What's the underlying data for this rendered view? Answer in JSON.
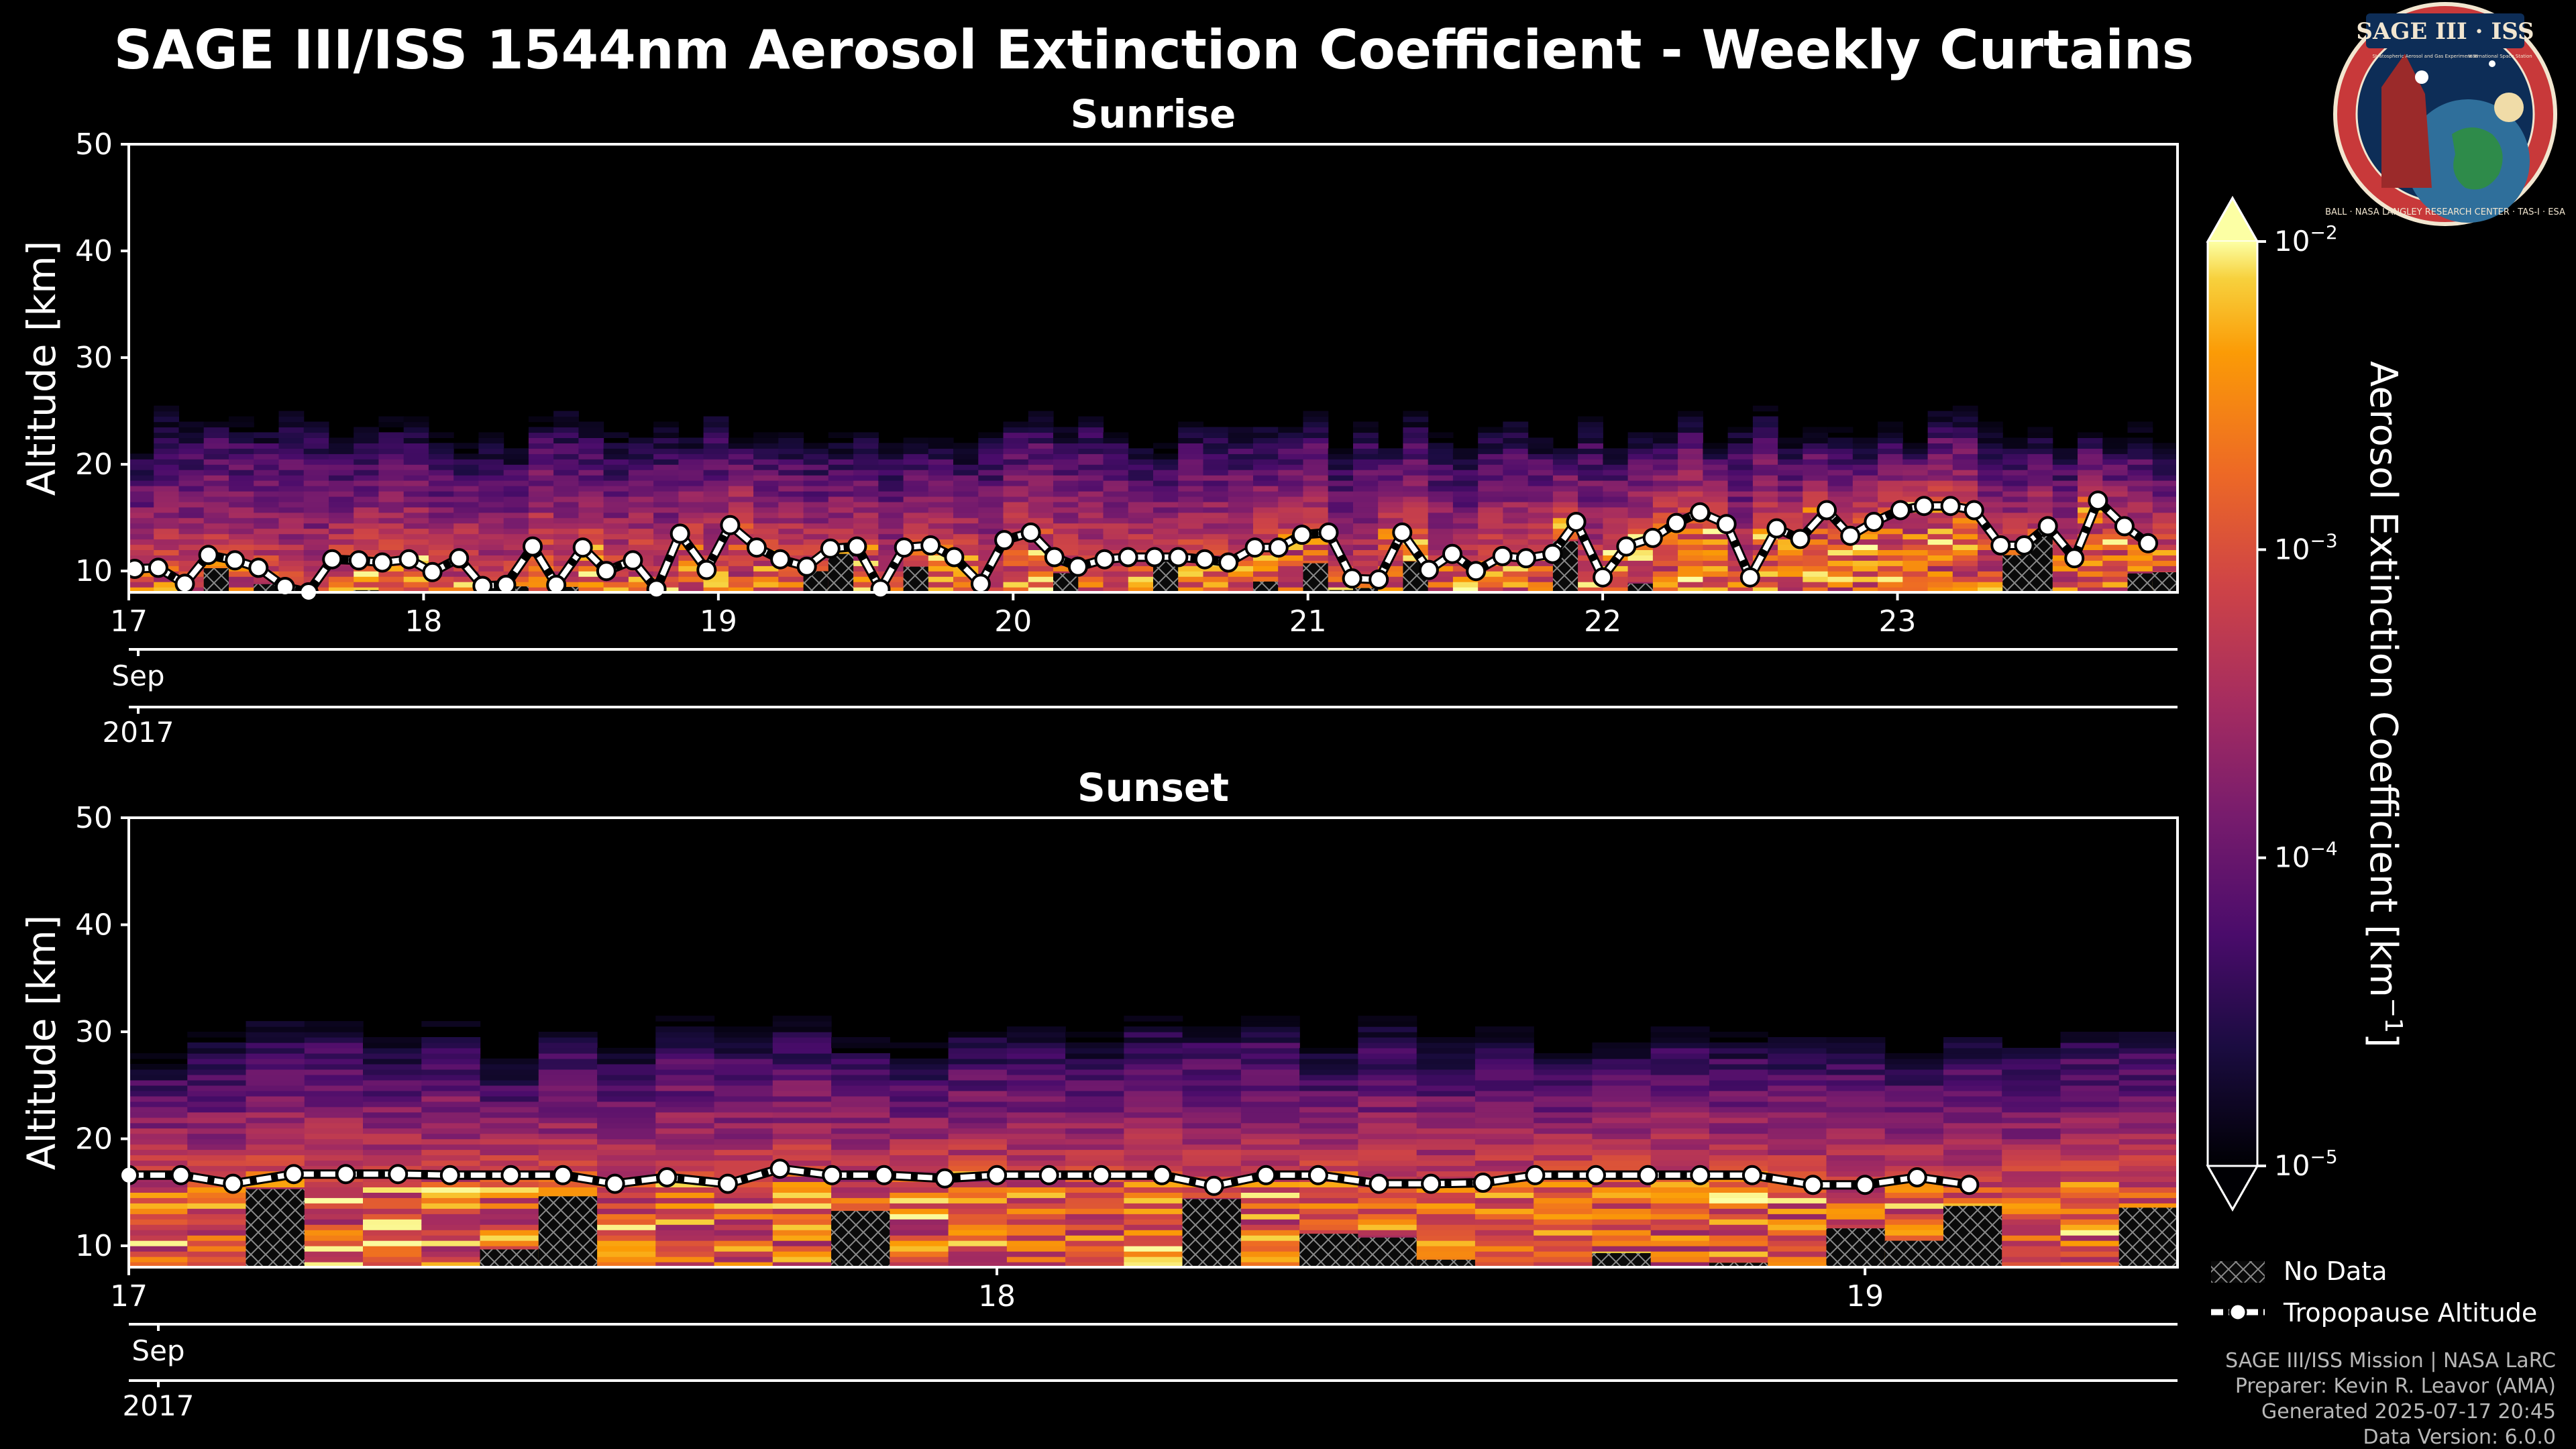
{
  "figure": {
    "title": "SAGE III/ISS 1544nm Aerosol Extinction Coefficient - Weekly Curtains",
    "colors": {
      "background": "#000000",
      "axis": "#ffffff",
      "tropopause": "#ffffff"
    }
  },
  "logo": {
    "text": "SAGE III · ISS",
    "subtitle_left": "Stratospheric Aerosol and Gas Experiment III",
    "subtitle_right": "International Space Station",
    "ring_text": "BALL · NASA LANGLEY RESEARCH CENTER · TAS-I · ESA",
    "colors": {
      "ring": "#c8393a",
      "inner": "#0d2d57",
      "globe": "#2f6f9b",
      "land": "#2e8b4a"
    }
  },
  "colorbar": {
    "label": "Aerosol Extinction Coefficient [km",
    "label_exp": "−1",
    "label_close": "]",
    "ticks": [
      {
        "base": "10",
        "exp": "−2",
        "value": -2
      },
      {
        "base": "10",
        "exp": "−3",
        "value": -3
      },
      {
        "base": "10",
        "exp": "−4",
        "value": -4
      },
      {
        "base": "10",
        "exp": "−5",
        "value": -5
      }
    ],
    "range_log10": [
      -5,
      -2
    ],
    "colormap": "inferno",
    "extend": "both"
  },
  "legend": {
    "items": [
      {
        "label": "No Data",
        "kind": "hatch"
      },
      {
        "label": "Tropopause Altitude",
        "kind": "line-marker"
      }
    ]
  },
  "footer": {
    "lines": [
      "SAGE III/ISS Mission | NASA LaRC",
      "Preparer: Kevin R. Leavor (AMA)",
      "Generated 2025-07-17 20:45",
      "Data Version: 6.0.0"
    ]
  },
  "chart_data": [
    {
      "type": "heatmap",
      "title": "Sunrise",
      "ylabel": "Altitude [km]",
      "ylim": [
        8,
        50
      ],
      "yticks": [
        10,
        20,
        30,
        40,
        50
      ],
      "xlim": [
        17.0,
        23.95
      ],
      "xticks": [
        17,
        18,
        19,
        20,
        21,
        22,
        23
      ],
      "xticklabels": [
        "17",
        "18",
        "19",
        "20",
        "21",
        "22",
        "23"
      ],
      "month_label": "Sep",
      "year_label": "2017",
      "n_profiles": 82,
      "aerosol_top_km": 24,
      "tropopause": {
        "x": [
          17.02,
          17.1,
          17.19,
          17.27,
          17.36,
          17.44,
          17.53,
          17.61,
          17.69,
          17.78,
          17.86,
          17.95,
          18.03,
          18.12,
          18.2,
          18.28,
          18.37,
          18.45,
          18.54,
          18.62,
          18.71,
          18.79,
          18.87,
          18.96,
          19.04,
          19.13,
          19.21,
          19.3,
          19.38,
          19.47,
          19.55,
          19.63,
          19.72,
          19.8,
          19.89,
          19.97,
          20.06,
          20.14,
          20.22,
          20.31,
          20.39,
          20.48,
          20.56,
          20.65,
          20.73,
          20.82,
          20.9,
          20.98,
          21.07,
          21.15,
          21.24,
          21.32,
          21.41,
          21.49,
          21.57,
          21.66,
          21.74,
          21.83,
          21.91,
          22.0,
          22.08,
          22.17,
          22.25,
          22.33,
          22.42,
          22.5,
          22.59,
          22.67,
          22.76,
          22.84,
          22.92,
          23.01,
          23.09,
          23.18,
          23.26,
          23.35,
          23.43,
          23.51,
          23.6,
          23.68,
          23.77,
          23.85
        ],
        "y": [
          10.2,
          10.3,
          8.8,
          11.5,
          11.0,
          10.3,
          8.5,
          8.0,
          11.1,
          11.0,
          10.8,
          11.1,
          9.9,
          11.2,
          8.6,
          8.7,
          12.3,
          8.7,
          12.2,
          10.0,
          11.0,
          8.3,
          13.5,
          10.1,
          14.3,
          12.2,
          11.1,
          10.4,
          12.1,
          12.3,
          8.3,
          12.2,
          12.4,
          11.3,
          8.8,
          12.9,
          13.6,
          11.3,
          10.4,
          11.1,
          11.3,
          11.3,
          11.3,
          11.1,
          10.8,
          12.2,
          12.2,
          13.4,
          13.6,
          9.3,
          9.2,
          13.6,
          10.1,
          11.6,
          10.0,
          11.4,
          11.2,
          11.6,
          14.6,
          9.4,
          12.3,
          13.1,
          14.5,
          15.5,
          14.4,
          9.4,
          14.0,
          13.0,
          15.7,
          13.3,
          14.6,
          15.7,
          16.1,
          16.1,
          15.7,
          12.4,
          12.4,
          14.2,
          11.2,
          16.6,
          14.2,
          12.6
        ]
      }
    },
    {
      "type": "heatmap",
      "title": "Sunset",
      "ylabel": "Altitude [km]",
      "ylim": [
        8,
        50
      ],
      "yticks": [
        10,
        20,
        30,
        40,
        50
      ],
      "xlim": [
        17.0,
        19.36
      ],
      "xticks": [
        17,
        18,
        19
      ],
      "xticklabels": [
        "17",
        "18",
        "19"
      ],
      "month_label": "Sep",
      "year_label": "2017",
      "n_profiles": 35,
      "aerosol_top_km": 30,
      "tropopause": {
        "x": [
          17.0,
          17.06,
          17.12,
          17.19,
          17.25,
          17.31,
          17.37,
          17.44,
          17.5,
          17.56,
          17.62,
          17.69,
          17.75,
          17.81,
          17.87,
          17.94,
          18.0,
          18.06,
          18.12,
          18.19,
          18.25,
          18.31,
          18.37,
          18.44,
          18.5,
          18.56,
          18.62,
          18.69,
          18.75,
          18.81,
          18.87,
          18.94,
          19.0,
          19.06,
          19.12
        ],
        "y": [
          16.6,
          16.6,
          15.8,
          16.7,
          16.7,
          16.7,
          16.6,
          16.6,
          16.6,
          15.8,
          16.4,
          15.8,
          17.2,
          16.6,
          16.6,
          16.3,
          16.6,
          16.6,
          16.6,
          16.6,
          15.6,
          16.6,
          16.6,
          15.8,
          15.8,
          15.9,
          16.6,
          16.6,
          16.6,
          16.6,
          16.6,
          15.7,
          15.7,
          16.4,
          15.7
        ]
      }
    }
  ]
}
